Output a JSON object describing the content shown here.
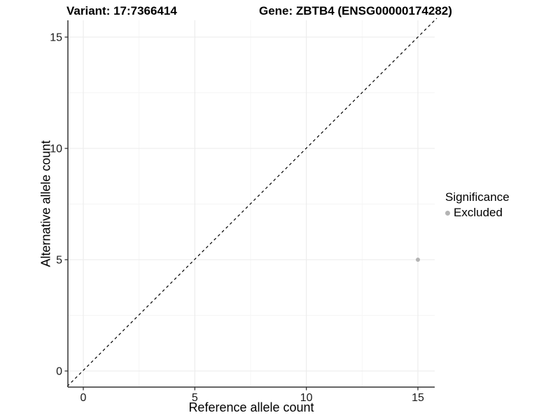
{
  "titles": {
    "variant": "Variant: 17:7366414",
    "gene": "Gene: ZBTB4 (ENSG00000174282)"
  },
  "axes": {
    "x_label": "Reference allele count",
    "y_label": "Alternative allele count"
  },
  "legend": {
    "title": "Significance",
    "items": [
      {
        "label": "Excluded",
        "color": "#b4b4b4"
      }
    ]
  },
  "colors": {
    "background": "#ffffff",
    "axis_line": "#333333",
    "tick_mark": "#333333",
    "tick_label": "#1a1a1a",
    "grid_major": "#ebebeb",
    "grid_minor": "#f5f5f5",
    "identity_line": "#000000",
    "point": "#b4b4b4"
  },
  "chart_data": {
    "type": "scatter",
    "title": "Variant: 17:7366414   Gene: ZBTB4 (ENSG00000174282)",
    "xlabel": "Reference allele count",
    "ylabel": "Alternative allele count",
    "xlim": [
      -0.75,
      15.75
    ],
    "ylim": [
      -0.75,
      15.75
    ],
    "xticks": [
      0,
      5,
      10,
      15
    ],
    "yticks": [
      0,
      5,
      10,
      15
    ],
    "grid": "major+minor",
    "legend_position": "right",
    "legend_title": "Significance",
    "series": [
      {
        "name": "Excluded",
        "color": "#b4b4b4",
        "points": [
          {
            "x": 15,
            "y": 5
          }
        ]
      }
    ],
    "reference_line": {
      "kind": "identity",
      "slope": 1,
      "intercept": 0,
      "style": "dashed",
      "color": "#000000"
    }
  }
}
